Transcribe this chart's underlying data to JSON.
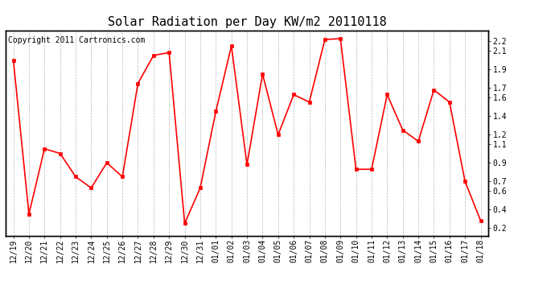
{
  "title": "Solar Radiation per Day KW/m2 20110118",
  "copyright": "Copyright 2011 Cartronics.com",
  "dates": [
    "12/19",
    "12/20",
    "12/21",
    "12/22",
    "12/23",
    "12/24",
    "12/25",
    "12/26",
    "12/27",
    "12/28",
    "12/29",
    "12/30",
    "12/31",
    "01/01",
    "01/02",
    "01/03",
    "01/04",
    "01/05",
    "01/06",
    "01/07",
    "01/08",
    "01/09",
    "01/10",
    "01/11",
    "01/12",
    "01/13",
    "01/14",
    "01/15",
    "01/16",
    "01/17",
    "01/18"
  ],
  "values": [
    2.0,
    0.35,
    1.05,
    1.0,
    0.75,
    0.63,
    0.9,
    0.75,
    1.75,
    2.05,
    2.08,
    0.25,
    0.63,
    1.45,
    2.15,
    0.88,
    1.85,
    1.2,
    1.63,
    1.55,
    2.22,
    2.23,
    0.83,
    0.83,
    1.63,
    1.25,
    1.13,
    1.68,
    1.55,
    0.7,
    0.28
  ],
  "line_color": "#ff0000",
  "marker_color": "#ff0000",
  "bg_color": "#ffffff",
  "grid_color": "#b0b0b0",
  "title_fontsize": 11,
  "yticks": [
    0.2,
    0.4,
    0.6,
    0.7,
    0.9,
    1.1,
    1.2,
    1.4,
    1.6,
    1.7,
    1.9,
    2.1,
    2.2
  ],
  "ylim": [
    0.12,
    2.32
  ],
  "copyright_fontsize": 7,
  "tick_fontsize": 7
}
